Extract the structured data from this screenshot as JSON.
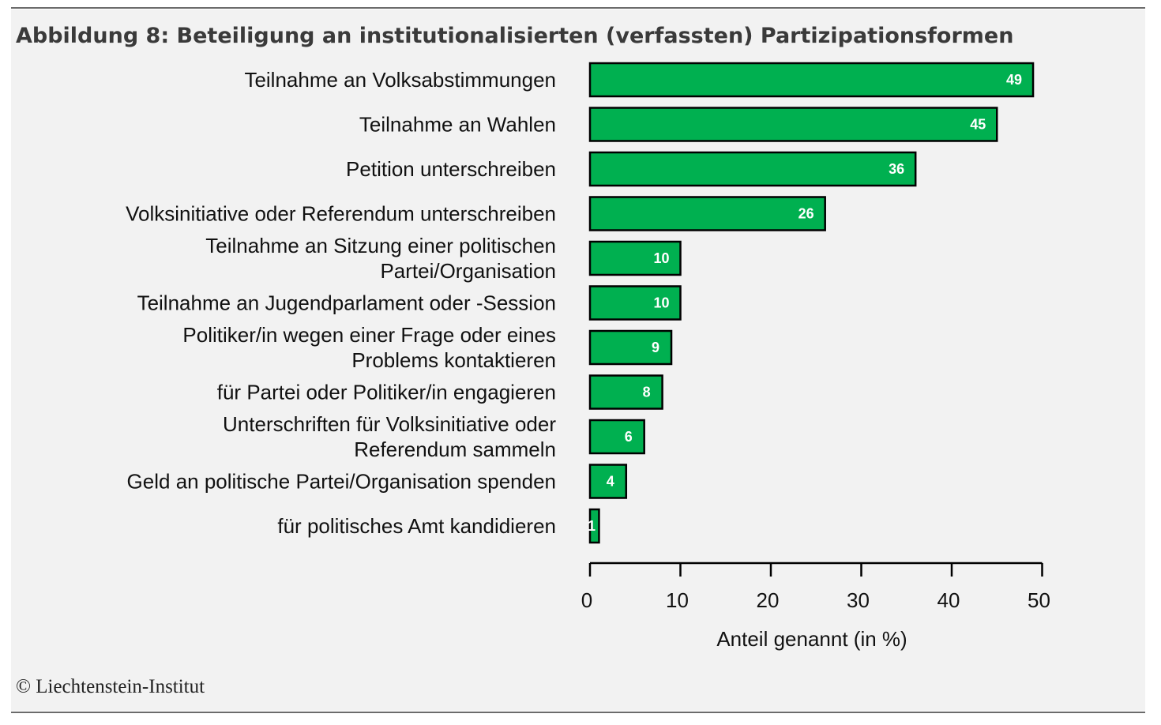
{
  "figure": {
    "title": "Abbildung 8: Beteiligung an institutionalisierten (verfassten) Partizipationsformen",
    "copyright": "© Liechtenstein-Institut"
  },
  "chart_data": {
    "type": "bar",
    "orientation": "horizontal",
    "title": "Abbildung 8: Beteiligung an institutionalisierten (verfassten) Partizipationsformen",
    "xlabel": "Anteil genannt (in %)",
    "ylabel": "",
    "xlim": [
      0,
      50
    ],
    "xticks": [
      0,
      10,
      20,
      30,
      40,
      50
    ],
    "bar_color": "#00b050",
    "bar_edge_color": "#000000",
    "grid": false,
    "legend": "none",
    "categories": [
      [
        "Teilnahme an Volksabstimmungen"
      ],
      [
        "Teilnahme an Wahlen"
      ],
      [
        "Petition unterschreiben"
      ],
      [
        "Volksinitiative oder Referendum unterschreiben"
      ],
      [
        "Teilnahme an Sitzung einer politischen",
        "Partei/Organisation"
      ],
      [
        "Teilnahme an Jugendparlament oder -Session"
      ],
      [
        "Politiker/in wegen einer Frage oder eines",
        "Problems kontaktieren"
      ],
      [
        "für Partei oder Politiker/in engagieren"
      ],
      [
        "Unterschriften für Volksinitiative oder",
        "Referendum sammeln"
      ],
      [
        "Geld an politische Partei/Organisation spenden"
      ],
      [
        "für politisches Amt kandidieren"
      ]
    ],
    "values": [
      49,
      45,
      36,
      26,
      10,
      10,
      9,
      8,
      6,
      4,
      1
    ]
  }
}
